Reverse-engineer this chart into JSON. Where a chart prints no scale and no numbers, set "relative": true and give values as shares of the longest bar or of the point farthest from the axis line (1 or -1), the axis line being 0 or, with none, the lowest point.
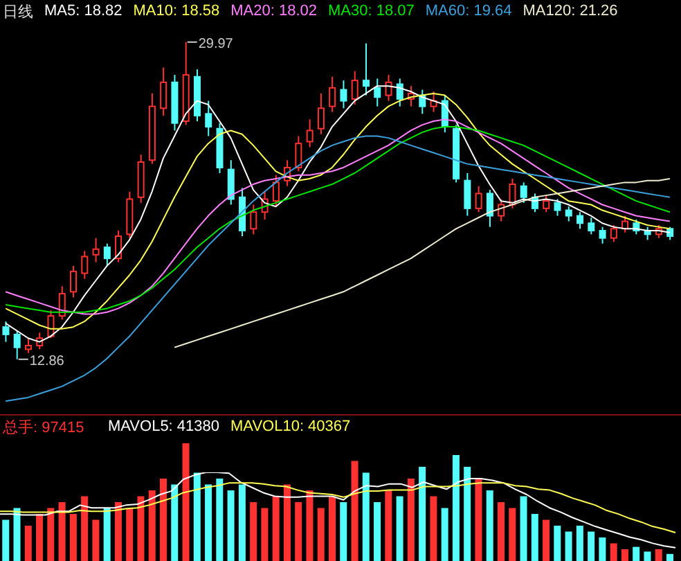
{
  "chart_data": [
    {
      "type": "candlestick",
      "title": "日线",
      "legend": "top",
      "tick_labels": false,
      "categories": [
        null,
        null,
        null,
        null,
        null,
        null,
        null,
        null,
        null,
        null,
        null,
        null,
        null,
        null,
        null,
        null,
        null,
        null,
        null,
        null,
        null,
        null,
        null,
        null,
        null,
        null,
        null,
        null,
        null,
        null,
        null,
        null,
        null,
        null,
        null,
        null,
        null,
        null,
        null,
        null,
        null,
        null,
        null,
        null,
        null,
        null,
        null,
        null,
        null,
        null,
        null,
        null,
        null,
        null,
        null,
        null,
        null,
        null,
        null,
        null
      ],
      "ohlc": [
        [
          14.6,
          14.9,
          13.8,
          14.2
        ],
        [
          14.2,
          14.4,
          12.86,
          13.5
        ],
        [
          13.4,
          14.0,
          13.2,
          13.6
        ],
        [
          13.6,
          14.3,
          13.4,
          14.0
        ],
        [
          14.1,
          15.5,
          14.0,
          15.2
        ],
        [
          15.2,
          16.8,
          15.0,
          16.4
        ],
        [
          16.5,
          17.9,
          16.2,
          17.6
        ],
        [
          17.5,
          18.7,
          17.2,
          18.4
        ],
        [
          18.5,
          19.4,
          18.1,
          18.8
        ],
        [
          18.9,
          19.1,
          17.9,
          18.3
        ],
        [
          18.3,
          19.8,
          18.1,
          19.5
        ],
        [
          19.6,
          21.9,
          19.4,
          21.5
        ],
        [
          21.6,
          23.9,
          21.3,
          23.5
        ],
        [
          23.6,
          27.2,
          23.4,
          26.5
        ],
        [
          26.4,
          28.6,
          26.0,
          27.8
        ],
        [
          27.8,
          28.2,
          25.2,
          25.6
        ],
        [
          25.7,
          29.97,
          25.5,
          28.2
        ],
        [
          28.1,
          28.5,
          25.7,
          26.0
        ],
        [
          26.1,
          26.8,
          24.9,
          25.4
        ],
        [
          25.3,
          25.6,
          22.9,
          23.2
        ],
        [
          23.1,
          23.6,
          21.2,
          21.5
        ],
        [
          21.6,
          22.1,
          19.5,
          19.8
        ],
        [
          19.9,
          21.2,
          19.6,
          20.8
        ],
        [
          20.8,
          21.9,
          20.4,
          21.5
        ],
        [
          21.4,
          22.8,
          21.1,
          22.4
        ],
        [
          22.5,
          23.6,
          22.2,
          23.2
        ],
        [
          23.2,
          24.9,
          23.0,
          24.5
        ],
        [
          24.6,
          25.8,
          24.3,
          25.2
        ],
        [
          25.3,
          27.2,
          25.0,
          26.4
        ],
        [
          26.5,
          28.1,
          26.2,
          27.5
        ],
        [
          27.4,
          27.9,
          26.4,
          26.8
        ],
        [
          26.9,
          28.4,
          26.6,
          27.9
        ],
        [
          27.9,
          29.9,
          27.1,
          27.6
        ],
        [
          27.5,
          28.0,
          26.5,
          27.0
        ],
        [
          27.1,
          28.2,
          26.8,
          27.8
        ],
        [
          27.7,
          28.0,
          26.5,
          26.9
        ],
        [
          26.9,
          27.6,
          26.5,
          27.2
        ],
        [
          27.1,
          27.4,
          26.1,
          26.5
        ],
        [
          26.5,
          27.3,
          26.2,
          26.8
        ],
        [
          26.8,
          27.1,
          25.1,
          25.4
        ],
        [
          25.3,
          25.5,
          22.4,
          22.6
        ],
        [
          22.5,
          22.9,
          20.6,
          21.0
        ],
        [
          21.0,
          22.2,
          20.8,
          21.8
        ],
        [
          21.8,
          22.0,
          20.0,
          20.6
        ],
        [
          20.6,
          21.5,
          20.3,
          21.2
        ],
        [
          21.2,
          22.6,
          21.0,
          22.3
        ],
        [
          22.2,
          22.4,
          21.3,
          21.6
        ],
        [
          21.6,
          21.8,
          20.8,
          21.0
        ],
        [
          21.0,
          21.7,
          20.8,
          21.4
        ],
        [
          21.3,
          21.5,
          20.6,
          20.9
        ],
        [
          20.9,
          21.1,
          20.3,
          20.6
        ],
        [
          20.6,
          20.8,
          19.9,
          20.2
        ],
        [
          20.2,
          20.5,
          19.6,
          19.8
        ],
        [
          19.8,
          20.0,
          19.1,
          19.4
        ],
        [
          19.4,
          20.1,
          19.2,
          19.9
        ],
        [
          19.9,
          20.6,
          19.7,
          20.3
        ],
        [
          20.2,
          20.4,
          19.6,
          19.8
        ],
        [
          19.8,
          20.0,
          19.3,
          19.6
        ],
        [
          19.6,
          20.1,
          19.4,
          19.9
        ],
        [
          19.9,
          20.0,
          19.3,
          19.5
        ]
      ],
      "colors": [
        "#54fcfc",
        "#54fcfc",
        "#ff3232",
        "#ff3232",
        "#ff3232",
        "#ff3232",
        "#ff3232",
        "#ff3232",
        "#ff3232",
        "#54fcfc",
        "#ff3232",
        "#ff3232",
        "#ff3232",
        "#ff3232",
        "#ff3232",
        "#54fcfc",
        "#ff3232",
        "#54fcfc",
        "#54fcfc",
        "#54fcfc",
        "#54fcfc",
        "#54fcfc",
        "#ff3232",
        "#ff3232",
        "#ff3232",
        "#ff3232",
        "#ff3232",
        "#ff3232",
        "#ff3232",
        "#ff3232",
        "#54fcfc",
        "#ff3232",
        "#54fcfc",
        "#54fcfc",
        "#ff3232",
        "#54fcfc",
        "#ff3232",
        "#54fcfc",
        "#ff3232",
        "#54fcfc",
        "#54fcfc",
        "#54fcfc",
        "#ff3232",
        "#54fcfc",
        "#ff3232",
        "#ff3232",
        "#54fcfc",
        "#54fcfc",
        "#ff3232",
        "#54fcfc",
        "#54fcfc",
        "#54fcfc",
        "#54fcfc",
        "#54fcfc",
        "#ff3232",
        "#ff3232",
        "#54fcfc",
        "#54fcfc",
        "#ff3232",
        "#54fcfc"
      ],
      "annotations": [
        "29.97",
        "12.86"
      ],
      "series": [
        {
          "type": "line",
          "name": "MA5: 18.82",
          "color": "#ffffff",
          "values": [
            14.8,
            14.4,
            14.0,
            13.8,
            14.1,
            14.6,
            15.4,
            16.3,
            17.1,
            17.9,
            18.5,
            19.3,
            20.4,
            21.9,
            23.7,
            24.9,
            26.1,
            26.8,
            26.6,
            25.7,
            24.8,
            23.4,
            22.0,
            21.3,
            21.1,
            21.6,
            22.5,
            23.5,
            24.3,
            25.4,
            26.1,
            26.8,
            27.2,
            27.6,
            27.6,
            27.5,
            27.3,
            27.0,
            26.8,
            26.6,
            25.7,
            24.5,
            23.3,
            22.3,
            21.4,
            21.3,
            21.5,
            21.4,
            21.5,
            21.4,
            21.2,
            20.9,
            20.6,
            20.2,
            20.0,
            19.9,
            19.9,
            19.8,
            19.8,
            19.7
          ]
        },
        {
          "type": "line",
          "name": "MA10: 18.58",
          "color": "#ffff54",
          "values": [
            15.6,
            15.3,
            15.0,
            14.7,
            14.5,
            14.5,
            14.6,
            14.9,
            15.4,
            16.0,
            16.7,
            17.4,
            18.2,
            19.2,
            20.4,
            21.6,
            22.7,
            23.8,
            24.5,
            25.0,
            25.2,
            25.0,
            24.4,
            23.7,
            23.0,
            22.7,
            22.5,
            22.6,
            22.8,
            23.2,
            23.9,
            24.7,
            25.4,
            26.0,
            26.5,
            26.8,
            27.0,
            27.1,
            27.2,
            27.1,
            26.6,
            25.9,
            25.1,
            24.4,
            23.9,
            23.4,
            23.0,
            22.6,
            22.2,
            21.8,
            21.4,
            21.3,
            21.2,
            20.9,
            20.7,
            20.5,
            20.3,
            20.1,
            20.0,
            19.9
          ]
        },
        {
          "type": "line",
          "name": "MA20: 18.02",
          "color": "#ff80ff",
          "values": [
            16.5,
            16.3,
            16.1,
            15.9,
            15.7,
            15.5,
            15.4,
            15.3,
            15.3,
            15.4,
            15.6,
            15.9,
            16.3,
            16.8,
            17.5,
            18.3,
            19.1,
            19.9,
            20.6,
            21.2,
            21.7,
            22.0,
            22.3,
            22.5,
            22.6,
            22.7,
            22.8,
            22.8,
            22.9,
            23.0,
            23.2,
            23.5,
            23.8,
            24.1,
            24.4,
            24.8,
            25.2,
            25.5,
            25.7,
            25.8,
            25.7,
            25.4,
            25.1,
            24.8,
            24.5,
            24.1,
            23.7,
            23.3,
            22.9,
            22.5,
            22.1,
            21.8,
            21.5,
            21.2,
            21.0,
            20.8,
            20.6,
            20.5,
            20.4,
            20.3
          ]
        },
        {
          "type": "line",
          "name": "MA30: 18.07",
          "color": "#00e600",
          "values": [
            15.8,
            15.7,
            15.6,
            15.5,
            15.4,
            15.4,
            15.4,
            15.4,
            15.5,
            15.6,
            15.8,
            16.0,
            16.3,
            16.7,
            17.2,
            17.7,
            18.3,
            18.9,
            19.4,
            19.9,
            20.3,
            20.6,
            20.9,
            21.1,
            21.3,
            21.5,
            21.7,
            21.9,
            22.1,
            22.3,
            22.6,
            22.9,
            23.3,
            23.7,
            24.1,
            24.5,
            24.8,
            25.1,
            25.3,
            25.4,
            25.4,
            25.3,
            25.2,
            25.0,
            24.8,
            24.6,
            24.4,
            24.1,
            23.8,
            23.5,
            23.2,
            22.9,
            22.6,
            22.3,
            22.0,
            21.7,
            21.4,
            21.2,
            21.0,
            20.8
          ]
        },
        {
          "type": "line",
          "name": "MA60: 19.64",
          "color": "#3ca0dc",
          "values": [
            10.6,
            10.7,
            10.8,
            11.0,
            11.2,
            11.4,
            11.7,
            12.0,
            12.4,
            12.9,
            13.5,
            14.1,
            14.8,
            15.5,
            16.2,
            16.9,
            17.6,
            18.3,
            19.0,
            19.6,
            20.2,
            20.8,
            21.4,
            21.9,
            22.4,
            22.9,
            23.3,
            23.7,
            24.1,
            24.4,
            24.6,
            24.8,
            24.9,
            24.9,
            24.8,
            24.6,
            24.4,
            24.2,
            24.0,
            23.8,
            23.6,
            23.4,
            23.3,
            23.2,
            23.1,
            23.0,
            22.9,
            22.8,
            22.7,
            22.6,
            22.5,
            22.4,
            22.3,
            22.2,
            22.1,
            22.0,
            21.9,
            21.8,
            21.7,
            21.6
          ]
        },
        {
          "type": "line",
          "name": "MA120: 21.26",
          "color": "#f0ecd0",
          "values": [
            null,
            null,
            null,
            null,
            null,
            null,
            null,
            null,
            null,
            null,
            null,
            null,
            null,
            null,
            null,
            13.5,
            13.7,
            13.9,
            14.1,
            14.3,
            14.5,
            14.7,
            14.9,
            15.1,
            15.3,
            15.5,
            15.7,
            15.9,
            16.1,
            16.3,
            16.5,
            16.8,
            17.1,
            17.4,
            17.7,
            18.0,
            18.3,
            18.7,
            19.1,
            19.5,
            19.9,
            20.2,
            20.5,
            20.8,
            21.0,
            21.2,
            21.4,
            21.6,
            21.7,
            21.8,
            21.9,
            22.0,
            22.1,
            22.2,
            22.3,
            22.4,
            22.4,
            22.5,
            22.5,
            22.6
          ]
        }
      ]
    },
    {
      "type": "bar",
      "relative": true,
      "title": "总手: 97415",
      "tick_labels": false,
      "categories": [
        null,
        null,
        null,
        null,
        null,
        null,
        null,
        null,
        null,
        null,
        null,
        null,
        null,
        null,
        null,
        null,
        null,
        null,
        null,
        null,
        null,
        null,
        null,
        null,
        null,
        null,
        null,
        null,
        null,
        null,
        null,
        null,
        null,
        null,
        null,
        null,
        null,
        null,
        null,
        null,
        null,
        null,
        null,
        null,
        null,
        null,
        null,
        null,
        null,
        null,
        null,
        null,
        null,
        null,
        null,
        null,
        null,
        null,
        null,
        null
      ],
      "series": [
        {
          "type": "bar",
          "color": "#ff3232",
          "colors": [
            "#54fcfc",
            "#54fcfc",
            "#ff3232",
            "#ff3232",
            "#ff3232",
            "#ff3232",
            "#ff3232",
            "#ff3232",
            "#ff3232",
            "#54fcfc",
            "#ff3232",
            "#ff3232",
            "#ff3232",
            "#ff3232",
            "#ff3232",
            "#54fcfc",
            "#ff3232",
            "#54fcfc",
            "#54fcfc",
            "#54fcfc",
            "#54fcfc",
            "#54fcfc",
            "#ff3232",
            "#ff3232",
            "#ff3232",
            "#ff3232",
            "#ff3232",
            "#ff3232",
            "#ff3232",
            "#ff3232",
            "#54fcfc",
            "#ff3232",
            "#54fcfc",
            "#54fcfc",
            "#ff3232",
            "#54fcfc",
            "#ff3232",
            "#54fcfc",
            "#ff3232",
            "#54fcfc",
            "#54fcfc",
            "#54fcfc",
            "#ff3232",
            "#54fcfc",
            "#ff3232",
            "#ff3232",
            "#54fcfc",
            "#54fcfc",
            "#ff3232",
            "#54fcfc",
            "#54fcfc",
            "#54fcfc",
            "#54fcfc",
            "#54fcfc",
            "#ff3232",
            "#ff3232",
            "#54fcfc",
            "#54fcfc",
            "#ff3232",
            "#54fcfc"
          ],
          "values": [
            0.35,
            0.45,
            0.3,
            0.4,
            0.45,
            0.5,
            0.4,
            0.55,
            0.35,
            0.45,
            0.5,
            0.45,
            0.55,
            0.6,
            0.7,
            0.65,
            1,
            0.75,
            0.65,
            0.7,
            0.6,
            0.65,
            0.5,
            0.45,
            0.55,
            0.65,
            0.5,
            0.6,
            0.45,
            0.55,
            0.5,
            0.85,
            0.75,
            0.5,
            0.6,
            0.55,
            0.7,
            0.8,
            0.55,
            0.45,
            0.9,
            0.8,
            0.7,
            0.6,
            0.5,
            0.45,
            0.55,
            0.4,
            0.35,
            0.3,
            0.25,
            0.3,
            0.25,
            0.2,
            0.15,
            0.1,
            0.12,
            0.08,
            0.1,
            0.06
          ]
        }
      ]
    },
    {
      "type": "line",
      "relative": true,
      "legend": "top",
      "tick_labels": false,
      "categories": [
        null,
        null,
        null,
        null,
        null,
        null,
        null,
        null,
        null,
        null,
        null,
        null,
        null,
        null,
        null,
        null,
        null,
        null,
        null,
        null,
        null,
        null,
        null,
        null,
        null,
        null,
        null,
        null,
        null,
        null,
        null,
        null,
        null,
        null,
        null,
        null,
        null,
        null,
        null,
        null,
        null,
        null,
        null,
        null,
        null,
        null,
        null,
        null,
        null,
        null,
        null,
        null,
        null,
        null,
        null,
        null,
        null,
        null,
        null,
        null
      ],
      "series": [
        {
          "name": "MAVOL5: 41380",
          "color": "#ffffff",
          "values": [
            0.53,
            0.53,
            0.52,
            0.52,
            0.52,
            0.56,
            0.56,
            0.63,
            0.6,
            0.6,
            0.6,
            0.63,
            0.64,
            0.69,
            0.75,
            0.79,
            0.92,
            0.97,
            1,
            1,
            0.99,
            0.89,
            0.83,
            0.77,
            0.73,
            0.72,
            0.72,
            0.73,
            0.73,
            0.73,
            0.69,
            0.79,
            0.85,
            0.84,
            0.87,
            0.87,
            0.83,
            0.89,
            0.85,
            0.81,
            0.89,
            0.93,
            0.93,
            0.91,
            0.88,
            0.81,
            0.75,
            0.67,
            0.6,
            0.55,
            0.49,
            0.44,
            0.39,
            0.35,
            0.31,
            0.27,
            0.24,
            0.2,
            0.17,
            0.15
          ]
        },
        {
          "name": "MAVOL10: 40367",
          "color": "#ffff54",
          "values": [
            0.56,
            0.56,
            0.55,
            0.55,
            0.55,
            0.55,
            0.55,
            0.57,
            0.56,
            0.56,
            0.57,
            0.59,
            0.6,
            0.63,
            0.67,
            0.71,
            0.77,
            0.8,
            0.83,
            0.85,
            0.88,
            0.88,
            0.88,
            0.87,
            0.85,
            0.84,
            0.8,
            0.77,
            0.76,
            0.75,
            0.72,
            0.76,
            0.79,
            0.79,
            0.8,
            0.8,
            0.8,
            0.84,
            0.84,
            0.84,
            0.85,
            0.87,
            0.88,
            0.88,
            0.88,
            0.85,
            0.84,
            0.81,
            0.8,
            0.76,
            0.71,
            0.67,
            0.63,
            0.57,
            0.53,
            0.48,
            0.44,
            0.39,
            0.36,
            0.32
          ]
        }
      ]
    }
  ]
}
